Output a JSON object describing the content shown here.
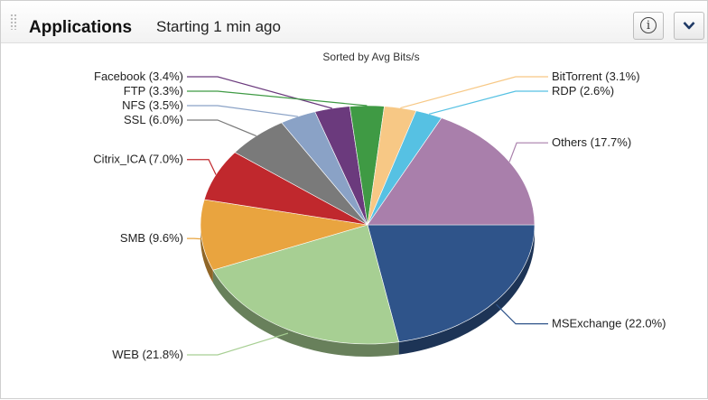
{
  "panel": {
    "title": "Applications",
    "subtitle": "Starting 1 min ago",
    "info_icon": "info-icon",
    "menu_icon": "chevron-down-icon"
  },
  "chart_data": {
    "type": "pie",
    "title": "Sorted by Avg Bits/s",
    "slices": [
      {
        "label": "MSExchange",
        "value": 22.0,
        "color": "#2f548a"
      },
      {
        "label": "WEB",
        "value": 21.8,
        "color": "#a7cf93"
      },
      {
        "label": "SMB",
        "value": 9.6,
        "color": "#e9a43f"
      },
      {
        "label": "Citrix_ICA",
        "value": 7.0,
        "color": "#c0282d"
      },
      {
        "label": "SSL",
        "value": 6.0,
        "color": "#7a7a7a"
      },
      {
        "label": "NFS",
        "value": 3.5,
        "color": "#8aa2c6"
      },
      {
        "label": "Facebook",
        "value": 3.4,
        "color": "#6b3a7d"
      },
      {
        "label": "FTP",
        "value": 3.3,
        "color": "#3f9a44"
      },
      {
        "label": "BitTorrent",
        "value": 3.1,
        "color": "#f7c885"
      },
      {
        "label": "RDP",
        "value": 2.6,
        "color": "#56c1e3"
      },
      {
        "label": "Others",
        "value": 17.7,
        "color": "#a97fab"
      }
    ]
  }
}
